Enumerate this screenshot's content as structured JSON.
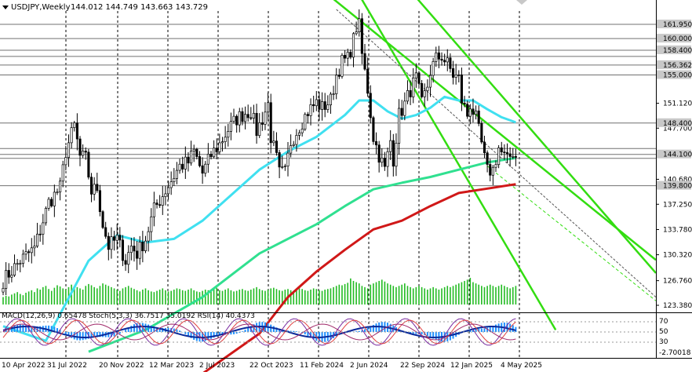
{
  "chart_data": {
    "type": "candlestick",
    "header": {
      "symbol": "USDJPY,Weekly",
      "ohlc": "144.012 144.749 143.663 143.729"
    },
    "colors": {
      "bull": "#000000",
      "bear": "#000000",
      "ma_short": "#40e0f0",
      "ma_mid": "#30e090",
      "ma_long": "#d01818",
      "channel": "#33dd11",
      "level_line": "#707070",
      "volume": "#22bb22",
      "macd_hist": "#1e8fff"
    },
    "price_axis": {
      "ticks": [
        "151.120",
        "147.700",
        "144.100",
        "140.680",
        "137.250",
        "133.780",
        "130.320",
        "126.760",
        "123.380"
      ],
      "ylim": [
        123.38,
        164.0
      ]
    },
    "level_labels": [
      {
        "label": "161.950",
        "value": 161.95
      },
      {
        "label": "160.000",
        "value": 160.0
      },
      {
        "label": "158.400",
        "value": 158.4
      },
      {
        "label": "156.362",
        "value": 156.362
      },
      {
        "label": "155.000",
        "value": 155.0
      },
      {
        "label": "148.400",
        "value": 148.4
      },
      {
        "label": "144.100",
        "value": 144.1
      },
      {
        "label": "139.800",
        "value": 139.8
      }
    ],
    "extra_levels": [
      157.55,
      144.9,
      143.55
    ],
    "x_labels": [
      "10 Apr 2022",
      "31 Jul 2022",
      "20 Nov 2022",
      "12 Mar 2023",
      "2 Jul 2023",
      "22 Oct 2023",
      "11 Feb 2024",
      "2 Jun 2024",
      "22 Sep 2024",
      "12 Jan 2025",
      "4 May 2025"
    ],
    "anchors": [
      [
        0,
        126.8
      ],
      [
        6,
        129.5
      ],
      [
        11,
        131.2
      ],
      [
        16,
        137.5
      ],
      [
        20,
        139.5
      ],
      [
        22,
        144.5
      ],
      [
        25,
        148.0
      ],
      [
        27,
        143.8
      ],
      [
        29,
        143.5
      ],
      [
        31,
        139.0
      ],
      [
        33,
        139.5
      ],
      [
        35,
        134.5
      ],
      [
        37,
        131.5
      ],
      [
        40,
        132.5
      ],
      [
        43,
        129.5
      ],
      [
        45,
        131.5
      ],
      [
        47,
        130.5
      ],
      [
        50,
        132.5
      ],
      [
        53,
        136.5
      ],
      [
        56,
        138.5
      ],
      [
        59,
        140.5
      ],
      [
        62,
        142.5
      ],
      [
        65,
        143.0
      ],
      [
        67,
        144.5
      ],
      [
        70,
        141.5
      ],
      [
        73,
        144.0
      ],
      [
        76,
        145.5
      ],
      [
        79,
        147.5
      ],
      [
        82,
        149.0
      ],
      [
        85,
        149.8
      ],
      [
        87,
        150.0
      ],
      [
        89,
        147.3
      ],
      [
        91,
        149.0
      ],
      [
        93,
        151.0
      ],
      [
        94,
        146.5
      ],
      [
        96,
        143.5
      ],
      [
        97,
        141.5
      ],
      [
        99,
        141.6
      ],
      [
        101,
        145.8
      ],
      [
        104,
        148.0
      ],
      [
        107,
        150.0
      ],
      [
        110,
        151.2
      ],
      [
        112,
        150.5
      ],
      [
        115,
        151.5
      ],
      [
        117,
        155.0
      ],
      [
        119,
        156.8
      ],
      [
        121,
        157.2
      ],
      [
        123,
        159.8
      ],
      [
        124,
        161.6
      ],
      [
        125,
        161.7
      ],
      [
        126,
        157.8
      ],
      [
        128,
        153.0
      ],
      [
        130,
        146.5
      ],
      [
        132,
        144.0
      ],
      [
        134,
        142.0
      ],
      [
        136,
        146.0
      ],
      [
        137,
        143.5
      ],
      [
        139,
        149.5
      ],
      [
        141,
        151.0
      ],
      [
        143,
        153.0
      ],
      [
        145,
        154.5
      ],
      [
        147,
        151.0
      ],
      [
        149,
        153.5
      ],
      [
        150,
        155.5
      ],
      [
        152,
        157.2
      ],
      [
        154,
        157.6
      ],
      [
        155,
        157.0
      ],
      [
        156,
        156.5
      ],
      [
        158,
        155.0
      ],
      [
        160,
        154.5
      ],
      [
        161,
        151.5
      ],
      [
        163,
        149.5
      ],
      [
        164,
        151.0
      ],
      [
        166,
        149.0
      ],
      [
        168,
        145.5
      ],
      [
        169,
        143.5
      ],
      [
        170,
        141.8
      ],
      [
        172,
        142.0
      ],
      [
        174,
        145.0
      ],
      [
        175,
        144.3
      ],
      [
        177,
        143.2
      ],
      [
        179,
        144.5
      ],
      [
        180,
        143.7
      ]
    ],
    "ma_short_points": [
      [
        0,
        120.5
      ],
      [
        15,
        118.5
      ],
      [
        30,
        129.5
      ],
      [
        40,
        133.0
      ],
      [
        50,
        132.0
      ],
      [
        60,
        132.5
      ],
      [
        70,
        135.0
      ],
      [
        80,
        138.5
      ],
      [
        90,
        142.0
      ],
      [
        100,
        144.5
      ],
      [
        110,
        146.5
      ],
      [
        120,
        149.5
      ],
      [
        125,
        151.5
      ],
      [
        130,
        151.5
      ],
      [
        135,
        150.0
      ],
      [
        140,
        149.0
      ],
      [
        145,
        149.5
      ],
      [
        150,
        150.5
      ],
      [
        155,
        152.0
      ],
      [
        160,
        151.5
      ],
      [
        165,
        151.5
      ],
      [
        170,
        150.3
      ],
      [
        175,
        149.2
      ],
      [
        180,
        148.5
      ]
    ],
    "ma_mid_points": [
      [
        30,
        117.0
      ],
      [
        50,
        120.0
      ],
      [
        70,
        124.5
      ],
      [
        90,
        130.5
      ],
      [
        110,
        134.5
      ],
      [
        120,
        137.0
      ],
      [
        130,
        139.3
      ],
      [
        140,
        140.2
      ],
      [
        150,
        141.0
      ],
      [
        160,
        142.0
      ],
      [
        170,
        143.0
      ],
      [
        180,
        143.6
      ]
    ],
    "ma_long_points": [
      [
        70,
        114.0
      ],
      [
        90,
        119.5
      ],
      [
        100,
        124.5
      ],
      [
        110,
        128.0
      ],
      [
        120,
        131.0
      ],
      [
        130,
        133.8
      ],
      [
        140,
        135.0
      ],
      [
        150,
        137.0
      ],
      [
        160,
        138.8
      ],
      [
        170,
        139.4
      ],
      [
        180,
        140.0
      ]
    ],
    "volume": [
      120,
      140,
      130,
      160,
      180,
      200,
      170,
      150,
      190,
      210,
      230,
      200,
      260,
      240,
      280,
      300,
      250,
      220,
      270,
      310,
      290,
      260,
      240,
      280,
      320,
      300,
      280,
      260,
      240,
      300,
      330,
      310,
      280,
      260,
      300,
      340,
      320,
      300,
      280,
      260,
      240,
      220,
      260,
      280,
      300,
      270,
      250,
      230,
      210,
      240,
      260,
      230,
      210,
      200,
      220,
      240,
      260,
      230,
      210,
      220,
      240,
      260,
      250,
      230,
      220,
      240,
      260,
      230,
      210,
      200,
      220,
      240,
      230,
      210,
      250,
      270,
      230,
      220,
      240,
      260,
      230,
      210,
      220,
      240,
      250,
      230,
      220,
      240,
      260,
      280,
      250,
      230,
      220,
      240,
      260,
      270,
      250,
      230,
      220,
      240,
      250,
      230,
      220,
      240,
      260,
      250,
      230,
      220,
      240,
      260,
      250,
      230,
      220,
      240,
      250,
      260,
      280,
      300,
      320,
      310,
      330,
      350,
      420,
      380,
      360,
      340,
      300,
      280,
      260,
      320,
      340,
      360,
      380,
      400,
      370,
      340,
      320,
      300,
      280,
      300,
      320,
      340,
      300,
      280,
      260,
      280,
      300,
      280,
      260,
      240,
      260,
      280,
      260,
      240,
      260,
      280,
      300,
      280,
      300,
      320,
      340,
      360,
      380,
      400,
      430,
      360,
      340,
      320,
      300,
      280,
      300,
      320,
      300,
      280,
      300,
      320,
      300,
      280,
      260,
      280,
      300
    ],
    "indicator": {
      "label": "MACD(12,26,9) 0.65478 Stoch(5,3,3) 36.7517 35.0192 RSI(14) 40.4373",
      "axis_ticks": [
        "70",
        "50",
        "30"
      ],
      "bottom_label": "-2.70018"
    }
  }
}
